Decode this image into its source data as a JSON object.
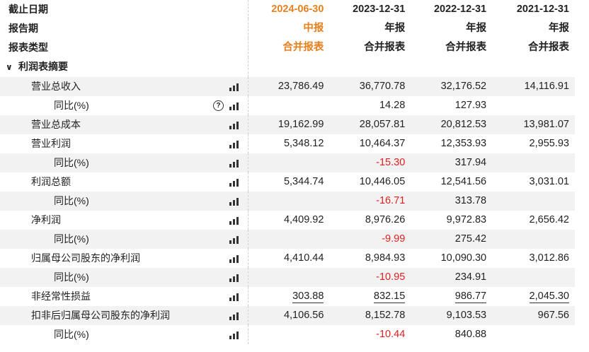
{
  "header": {
    "row1_label": "截止日期",
    "row2_label": "报告期",
    "row3_label": "报表类型",
    "periods": [
      {
        "date": "2024-06-30",
        "type": "中报",
        "statement": "合并报表",
        "highlight": true
      },
      {
        "date": "2023-12-31",
        "type": "年报",
        "statement": "合并报表",
        "highlight": false
      },
      {
        "date": "2022-12-31",
        "type": "年报",
        "statement": "合并报表",
        "highlight": false
      },
      {
        "date": "2021-12-31",
        "type": "年报",
        "statement": "合并报表",
        "highlight": false
      }
    ]
  },
  "section": {
    "label": "利润表摘要",
    "expanded": true
  },
  "rows": [
    {
      "label": "营业总收入",
      "sub": false,
      "help": false,
      "values": [
        "23,786.49",
        "36,770.78",
        "32,176.52",
        "14,116.91"
      ]
    },
    {
      "label": "同比(%)",
      "sub": true,
      "help": true,
      "values": [
        "",
        "14.28",
        "127.93",
        ""
      ]
    },
    {
      "label": "营业总成本",
      "sub": false,
      "help": false,
      "values": [
        "19,162.99",
        "28,057.81",
        "20,812.53",
        "13,981.07"
      ]
    },
    {
      "label": "营业利润",
      "sub": false,
      "help": false,
      "values": [
        "5,348.12",
        "10,464.37",
        "12,353.93",
        "2,955.93"
      ]
    },
    {
      "label": "同比(%)",
      "sub": true,
      "help": false,
      "values": [
        "",
        "-15.30",
        "317.94",
        ""
      ]
    },
    {
      "label": "利润总额",
      "sub": false,
      "help": false,
      "values": [
        "5,344.74",
        "10,446.05",
        "12,541.56",
        "3,031.01"
      ]
    },
    {
      "label": "同比(%)",
      "sub": true,
      "help": false,
      "values": [
        "",
        "-16.71",
        "313.78",
        ""
      ]
    },
    {
      "label": "净利润",
      "sub": false,
      "help": false,
      "values": [
        "4,409.92",
        "8,976.26",
        "9,972.83",
        "2,656.42"
      ]
    },
    {
      "label": "同比(%)",
      "sub": true,
      "help": false,
      "values": [
        "",
        "-9.99",
        "275.42",
        ""
      ]
    },
    {
      "label": "归属母公司股东的净利润",
      "sub": false,
      "help": false,
      "values": [
        "4,410.44",
        "8,984.93",
        "10,090.30",
        "3,012.86"
      ]
    },
    {
      "label": "同比(%)",
      "sub": true,
      "help": false,
      "values": [
        "",
        "-10.95",
        "234.91",
        ""
      ]
    },
    {
      "label": "非经常性损益",
      "sub": false,
      "help": false,
      "underline": true,
      "values": [
        "303.88",
        "832.15",
        "986.77",
        "2,045.30"
      ]
    },
    {
      "label": "扣非后归属母公司股东的净利润",
      "sub": false,
      "help": false,
      "values": [
        "4,106.56",
        "8,152.78",
        "9,103.53",
        "967.56"
      ]
    },
    {
      "label": "同比(%)",
      "sub": true,
      "help": false,
      "values": [
        "",
        "-10.44",
        "840.88",
        ""
      ]
    }
  ],
  "colors": {
    "highlight": "#e8801e",
    "negative": "#e02020",
    "stripe": "#f2f2f2"
  },
  "icons": {
    "row_chart": "bar-chart-icon",
    "help": "help-circle-icon",
    "section": "chevron-down-icon"
  }
}
